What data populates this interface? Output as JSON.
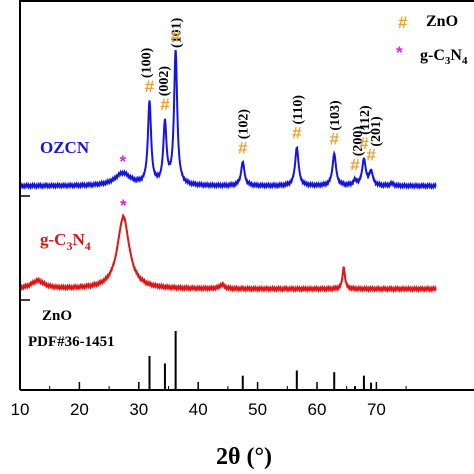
{
  "chart_data": {
    "type": "line",
    "xlabel": "2θ (°)",
    "xlim": [
      10,
      80
    ],
    "x_ticks": [
      "10",
      "20",
      "30",
      "40",
      "50",
      "60",
      "70"
    ],
    "legend": [
      {
        "symbol": "#",
        "text": "ZnO",
        "color": "#f0a030"
      },
      {
        "symbol": "*",
        "text": "g-C3N4",
        "color": "#e020e0"
      }
    ],
    "series": [
      {
        "name": "OZCN",
        "color": "#1515e0",
        "baseline": 0.05,
        "peaks": [
          {
            "x": 27.3,
            "h": 0.16,
            "w": 1.6
          },
          {
            "x": 31.8,
            "h": 1.05,
            "w": 0.32
          },
          {
            "x": 34.4,
            "h": 0.78,
            "w": 0.32
          },
          {
            "x": 36.2,
            "h": 1.7,
            "w": 0.32
          },
          {
            "x": 47.5,
            "h": 0.3,
            "w": 0.35
          },
          {
            "x": 56.6,
            "h": 0.49,
            "w": 0.35
          },
          {
            "x": 62.9,
            "h": 0.41,
            "w": 0.35
          },
          {
            "x": 66.4,
            "h": 0.06,
            "w": 0.35
          },
          {
            "x": 67.9,
            "h": 0.34,
            "w": 0.35
          },
          {
            "x": 69.1,
            "h": 0.18,
            "w": 0.35
          },
          {
            "x": 72.6,
            "h": 0.03,
            "w": 0.35
          }
        ]
      },
      {
        "name": "g-C3N4",
        "color": "#e01515",
        "baseline": 0.05,
        "peaks": [
          {
            "x": 13.0,
            "h": 0.1,
            "w": 1.3
          },
          {
            "x": 27.4,
            "h": 0.9,
            "w": 1.2
          },
          {
            "x": 44.0,
            "h": 0.05,
            "w": 0.5
          },
          {
            "x": 64.5,
            "h": 0.27,
            "w": 0.25
          }
        ]
      }
    ],
    "reference": {
      "label_line1": "ZnO",
      "label_line2": "PDF#36-1451",
      "lines": [
        {
          "x": 31.8,
          "intensity": 0.57
        },
        {
          "x": 34.4,
          "intensity": 0.44
        },
        {
          "x": 36.2,
          "intensity": 1.0
        },
        {
          "x": 47.5,
          "intensity": 0.23
        },
        {
          "x": 56.6,
          "intensity": 0.32
        },
        {
          "x": 62.9,
          "intensity": 0.29
        },
        {
          "x": 66.4,
          "intensity": 0.05
        },
        {
          "x": 67.9,
          "intensity": 0.23
        },
        {
          "x": 69.1,
          "intensity": 0.11
        }
      ]
    },
    "peak_labels": [
      {
        "text": "(100)",
        "x": 31.8
      },
      {
        "text": "(002)",
        "x": 34.4
      },
      {
        "text": "(101)",
        "x": 36.2
      },
      {
        "text": "(102)",
        "x": 47.5
      },
      {
        "text": "(110)",
        "x": 56.6
      },
      {
        "text": "(103)",
        "x": 62.9
      },
      {
        "text": "(200)",
        "x": 66.4
      },
      {
        "text": "(112)",
        "x": 67.9
      },
      {
        "text": "(201)",
        "x": 69.1
      }
    ],
    "markers": [
      {
        "symbol": "*",
        "x": 27.3,
        "series": 0
      },
      {
        "symbol": "#",
        "x": 31.8,
        "series": 0
      },
      {
        "symbol": "#",
        "x": 34.4,
        "series": 0
      },
      {
        "symbol": "#",
        "x": 36.2,
        "series": 0
      },
      {
        "symbol": "#",
        "x": 47.5,
        "series": 0
      },
      {
        "symbol": "#",
        "x": 56.6,
        "series": 0
      },
      {
        "symbol": "#",
        "x": 62.9,
        "series": 0
      },
      {
        "symbol": "#",
        "x": 66.4,
        "series": 0
      },
      {
        "symbol": "#",
        "x": 67.9,
        "series": 0
      },
      {
        "symbol": "#",
        "x": 69.1,
        "series": 0
      },
      {
        "symbol": "*",
        "x": 27.4,
        "series": 1
      }
    ]
  }
}
